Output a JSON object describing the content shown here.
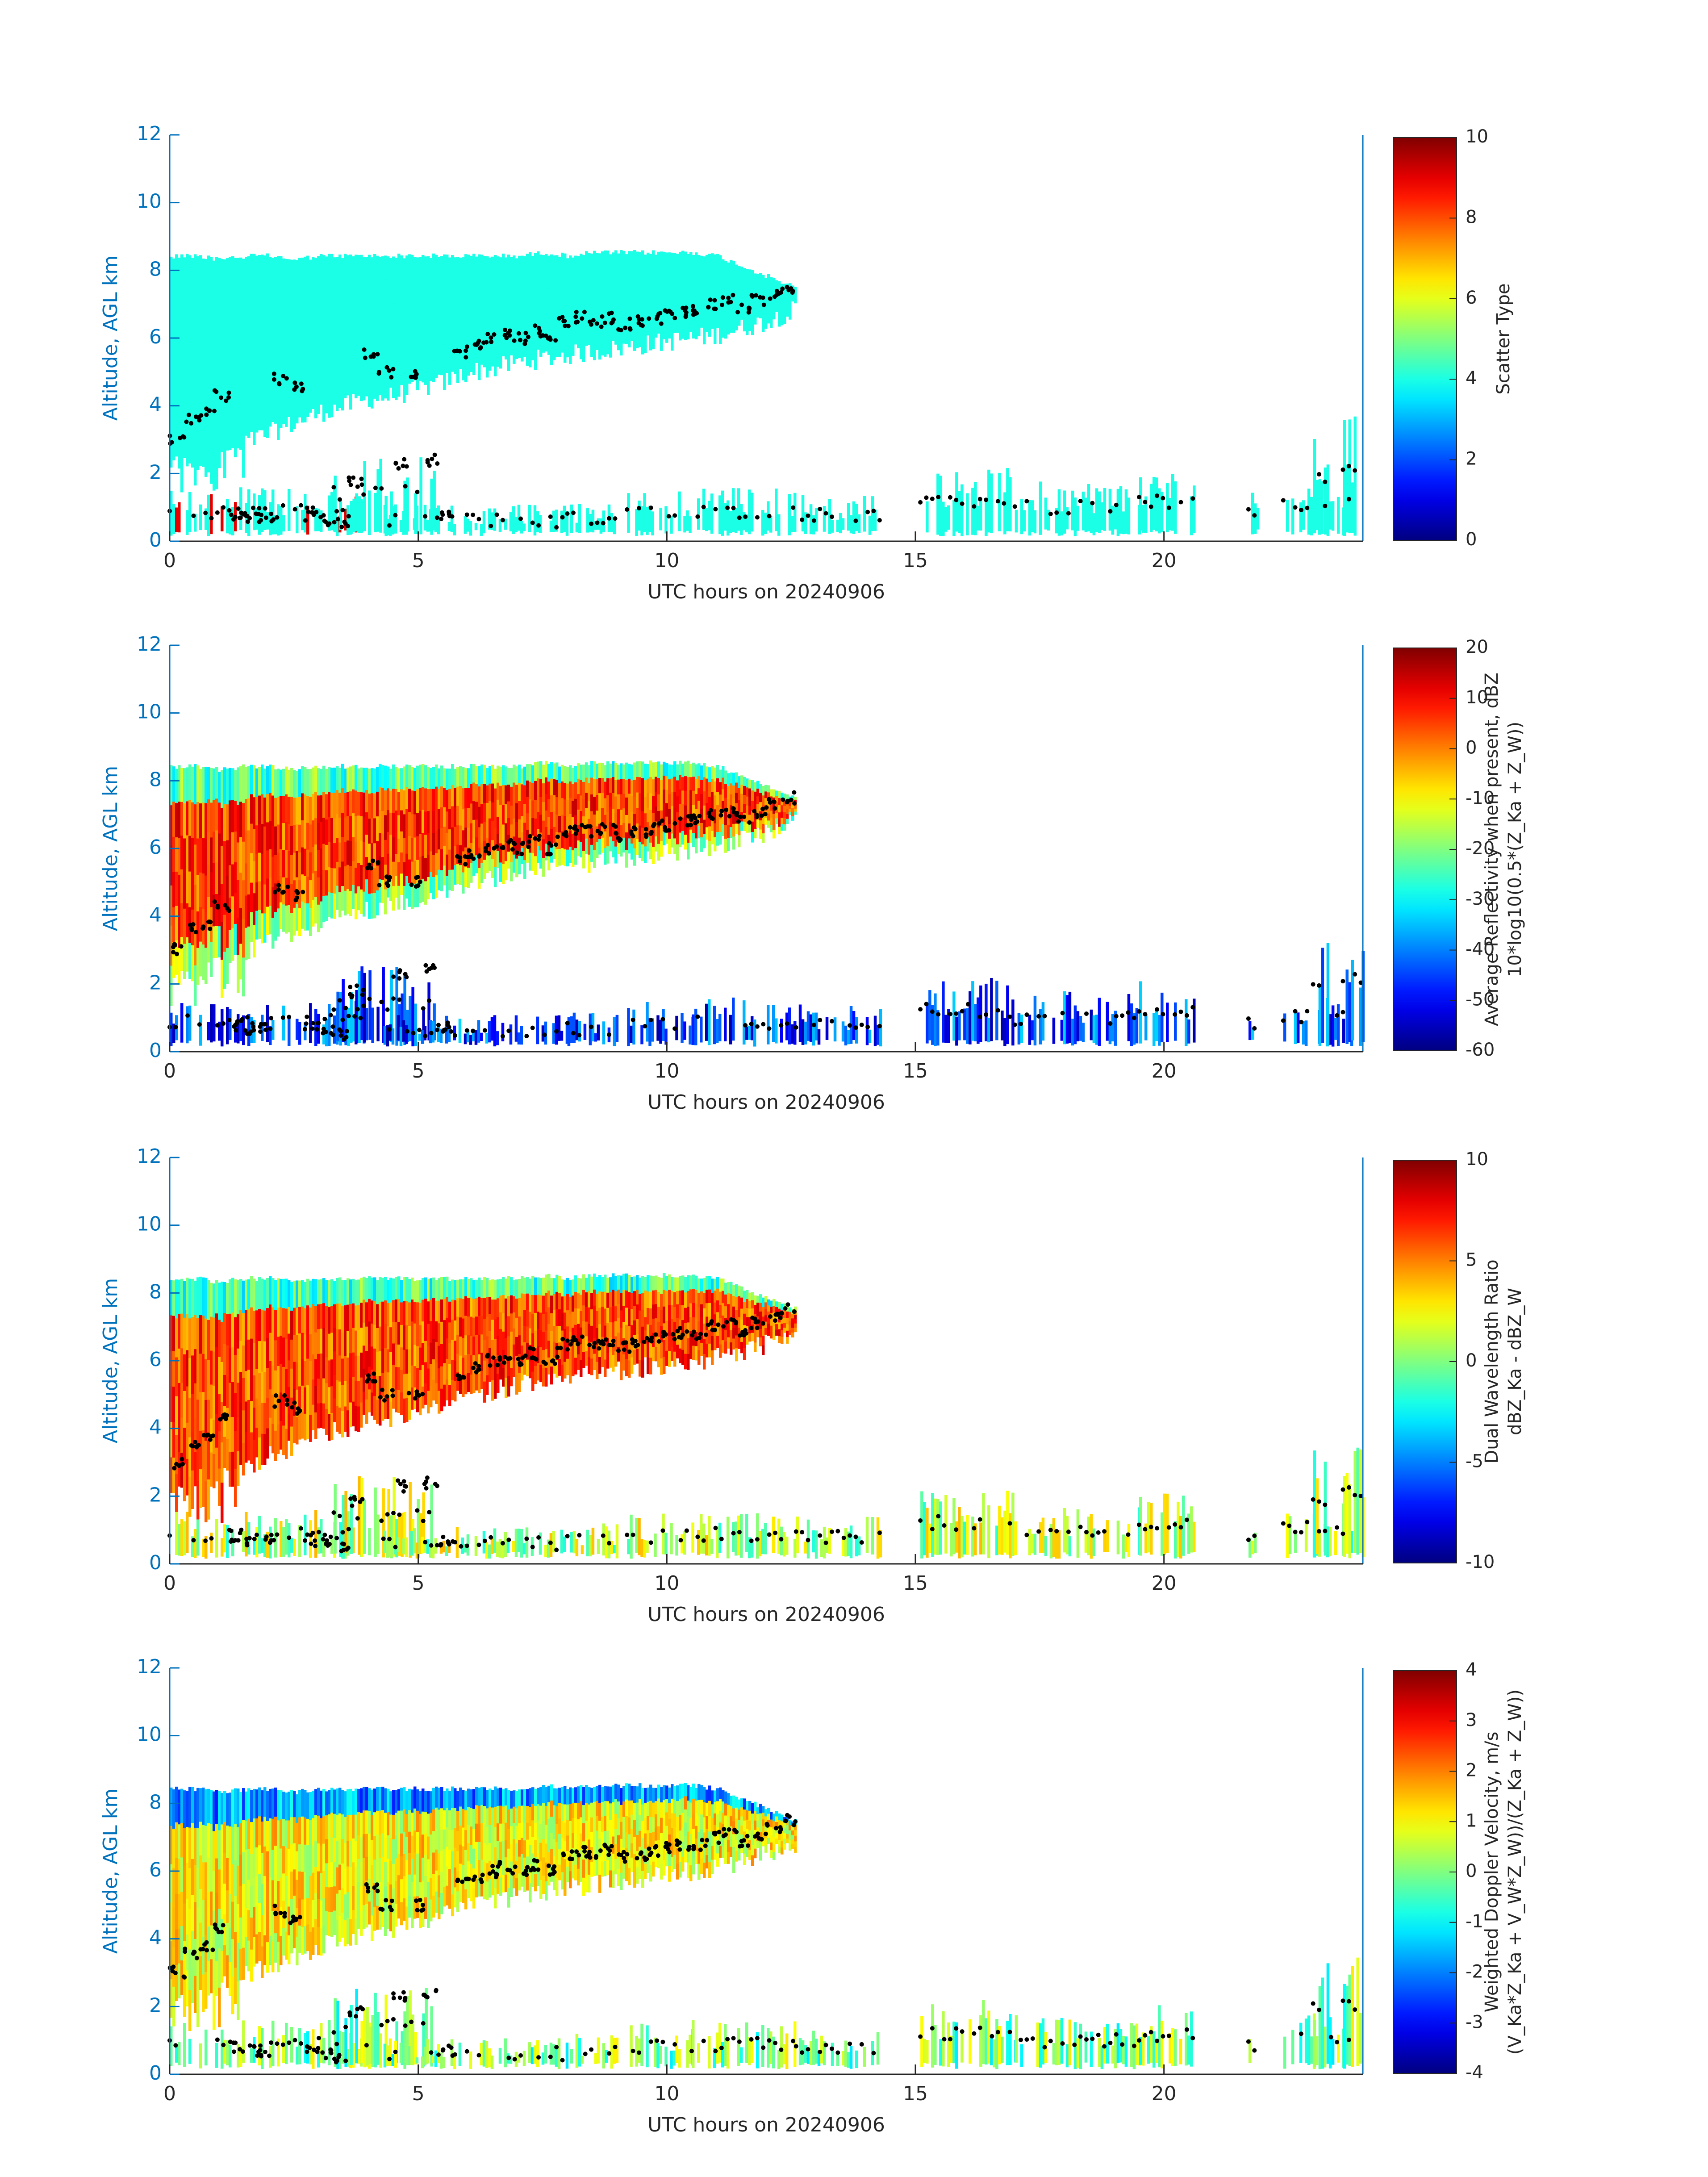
{
  "chart_data": [
    {
      "type": "heatmap",
      "xlabel": "UTC hours on 20240906",
      "ylabel": "Altitude, AGL km",
      "xlim": [
        0,
        24
      ],
      "ylim": [
        0,
        12
      ],
      "xticks": [
        "0",
        "5",
        "10",
        "15",
        "20"
      ],
      "yticks": [
        "0",
        "2",
        "4",
        "6",
        "8",
        "10",
        "12"
      ],
      "colorbar": {
        "label_lines": [
          "Scatter Type"
        ],
        "range": [
          0,
          10
        ],
        "ticks": [
          "0",
          "2",
          "4",
          "6",
          "8",
          "10"
        ],
        "colormap": "jet"
      },
      "dominant_value": 4,
      "secondary_value": 9
    },
    {
      "type": "heatmap",
      "xlabel": "UTC hours on 20240906",
      "ylabel": "Altitude, AGL km",
      "xlim": [
        0,
        24
      ],
      "ylim": [
        0,
        12
      ],
      "xticks": [
        "0",
        "5",
        "10",
        "15",
        "20"
      ],
      "yticks": [
        "0",
        "2",
        "4",
        "6",
        "8",
        "10",
        "12"
      ],
      "colorbar": {
        "label_lines": [
          "Average Reflectivity when present, dBZ",
          "10*log10(0.5*(Z_Ka + Z_W))"
        ],
        "range": [
          -60,
          20
        ],
        "ticks": [
          "-60",
          "-50",
          "-40",
          "-30",
          "-20",
          "-10",
          "0",
          "10",
          "20"
        ],
        "colormap": "jet"
      },
      "upper_layer_value": 5,
      "lower_layer_value": -45
    },
    {
      "type": "heatmap",
      "xlabel": "UTC hours on 20240906",
      "ylabel": "Altitude, AGL km",
      "xlim": [
        0,
        24
      ],
      "ylim": [
        0,
        12
      ],
      "xticks": [
        "0",
        "5",
        "10",
        "15",
        "20"
      ],
      "yticks": [
        "0",
        "2",
        "4",
        "6",
        "8",
        "10",
        "12"
      ],
      "colorbar": {
        "label_lines": [
          "Dual Wavelength Ratio",
          "dBZ_Ka - dBZ_W"
        ],
        "range": [
          -10,
          10
        ],
        "ticks": [
          "-10",
          "-5",
          "0",
          "5",
          "10"
        ],
        "colormap": "jet"
      },
      "upper_layer_value": 6,
      "lower_layer_value": 1
    },
    {
      "type": "heatmap",
      "xlabel": "UTC hours on 20240906",
      "ylabel": "Altitude, AGL km",
      "xlim": [
        0,
        24
      ],
      "ylim": [
        0,
        12
      ],
      "xticks": [
        "0",
        "5",
        "10",
        "15",
        "20"
      ],
      "yticks": [
        "0",
        "2",
        "4",
        "6",
        "8",
        "10",
        "12"
      ],
      "colorbar": {
        "label_lines": [
          "Weighted Doppler Velocity, m/s",
          "(V_Ka*Z_Ka + V_W*Z_W))/(Z_Ka + Z_W))"
        ],
        "range": [
          -4,
          4
        ],
        "ticks": [
          "-4",
          "-3",
          "-2",
          "-1",
          "0",
          "1",
          "2",
          "3",
          "4"
        ],
        "colormap": "jet"
      },
      "upper_layer_value": 1,
      "lower_layer_value": 0
    }
  ],
  "colors": {
    "axis": "#0072bd",
    "text": "#262626",
    "markers": "#000000"
  },
  "overlays": {
    "upper_cloud_envelope": {
      "x_hours": [
        0,
        0.5,
        1,
        1.5,
        2,
        2.5,
        3,
        3.5,
        4,
        4.5,
        5,
        5.5,
        6,
        6.5,
        7,
        7.5,
        8,
        8.5,
        9,
        9.5,
        10,
        10.5,
        11,
        11.5,
        12,
        12.5
      ],
      "top_km": [
        8.5,
        8.5,
        8.4,
        8.5,
        8.5,
        8.4,
        8.5,
        8.5,
        8.5,
        8.5,
        8.5,
        8.5,
        8.5,
        8.5,
        8.5,
        8.6,
        8.5,
        8.6,
        8.6,
        8.6,
        8.6,
        8.6,
        8.5,
        8.2,
        7.9,
        7.6
      ],
      "base_km": [
        2.3,
        2.2,
        2.6,
        2.9,
        3.2,
        3.5,
        3.8,
        4.0,
        4.2,
        4.3,
        4.5,
        4.7,
        5.0,
        5.1,
        5.3,
        5.4,
        5.5,
        5.6,
        5.7,
        5.8,
        5.9,
        6.0,
        6.1,
        6.3,
        6.5,
        6.8
      ]
    },
    "lower_cloud_segments": [
      {
        "x0": 0,
        "x1": 4.0,
        "top_km": 1.6
      },
      {
        "x0": 3.3,
        "x1": 5.3,
        "top_km": 2.6
      },
      {
        "x0": 4.3,
        "x1": 8.0,
        "top_km": 1.1
      },
      {
        "x0": 8.0,
        "x1": 9.0,
        "top_km": 1.2
      },
      {
        "x0": 9.2,
        "x1": 10.5,
        "top_km": 1.5
      },
      {
        "x0": 10.5,
        "x1": 12.6,
        "top_km": 1.6
      },
      {
        "x0": 12.6,
        "x1": 14.3,
        "top_km": 1.4
      },
      {
        "x0": 15.1,
        "x1": 17.0,
        "top_km": 2.2
      },
      {
        "x0": 17.0,
        "x1": 19.5,
        "top_km": 1.8
      },
      {
        "x0": 19.5,
        "x1": 20.6,
        "top_km": 2.1
      },
      {
        "x0": 21.7,
        "x1": 21.9,
        "top_km": 1.5
      },
      {
        "x0": 22.4,
        "x1": 23.8,
        "top_km": 1.9
      },
      {
        "x0": 23.0,
        "x1": 23.3,
        "top_km": 3.5
      },
      {
        "x0": 23.6,
        "x1": 24.0,
        "top_km": 3.8
      }
    ],
    "cloud_top_marker_track": {
      "x_hours": [
        0,
        0.3,
        0.6,
        0.9,
        1.2,
        1.5,
        1.8,
        2.1,
        2.4,
        2.7,
        3.0,
        3.3,
        3.6,
        3.9,
        4.2,
        4.5,
        4.8,
        5.1,
        5.4,
        5.7,
        6.0,
        6.3,
        6.6,
        6.9,
        7.2,
        7.5,
        7.8,
        8.1,
        8.4,
        8.7,
        9.0,
        9.3,
        9.6,
        9.9,
        10.2,
        10.5,
        10.8,
        11.1,
        11.4,
        11.7,
        12.0,
        12.3
      ],
      "alt_km": [
        3.0,
        3.6,
        3.8,
        4.3,
        0.8,
        0.7,
        0.7,
        4.8,
        4.6,
        0.7,
        0.6,
        0.5,
        1.8,
        5.5,
        5.0,
        2.3,
        5.0,
        2.4,
        0.7,
        5.6,
        5.8,
        6.0,
        6.1,
        6.0,
        6.2,
        6.0,
        6.5,
        6.6,
        6.5,
        6.6,
        6.4,
        6.5,
        6.6,
        6.7,
        6.8,
        6.8,
        7.0,
        7.1,
        6.9,
        7.1,
        7.3,
        7.5
      ]
    }
  }
}
